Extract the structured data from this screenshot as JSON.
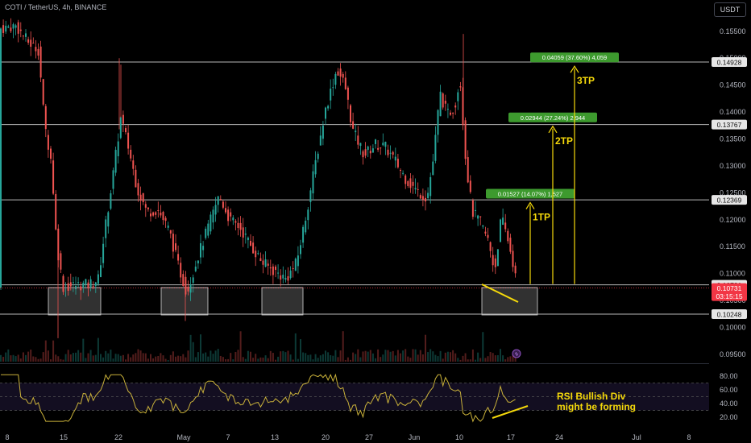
{
  "header": {
    "title": "COTI / TetherUS, 4h, BINANCE",
    "currency": "USDT"
  },
  "price_axis": {
    "ticks": [
      "0.15500",
      "0.15000",
      "0.14500",
      "0.14000",
      "0.13500",
      "0.13000",
      "0.12500",
      "0.12000",
      "0.11500",
      "0.11000",
      "0.10500",
      "0.10000",
      "0.09500"
    ],
    "tick_values": [
      0.155,
      0.15,
      0.145,
      0.14,
      0.135,
      0.13,
      0.125,
      0.12,
      0.115,
      0.11,
      0.105,
      0.1,
      0.095
    ]
  },
  "levels": [
    {
      "label": "0.14928",
      "value": 0.14928,
      "line_color": "#b8b8b8"
    },
    {
      "label": "0.13767",
      "value": 0.13767,
      "line_color": "#b8b8b8"
    },
    {
      "label": "0.12369",
      "value": 0.12369,
      "line_color": "#b8b8b8"
    },
    {
      "label": "0.10791",
      "value": 0.10791,
      "line_color": "#b8b8b8"
    },
    {
      "label": "0.10248",
      "value": 0.10248,
      "line_color": "#b8b8b8"
    }
  ],
  "current_price": {
    "label": "0.10731",
    "countdown": "03:15:15",
    "color": "#f23645",
    "value": 0.10731
  },
  "time_axis": {
    "labels": [
      "8",
      "15",
      "22",
      "May",
      "7",
      "13",
      "20",
      "27",
      "Jun",
      "10",
      "17",
      "24",
      "Jul",
      "8"
    ]
  },
  "targets": [
    {
      "name": "1TP",
      "measure": "0.01527 (14.07%) 1,527",
      "height": 0.01527
    },
    {
      "name": "2TP",
      "measure": "0.02944 (27.24%) 2,944",
      "height": 0.02944
    },
    {
      "name": "3TP",
      "measure": "0.04059 (37.60%) 4,059",
      "height": 0.04059
    }
  ],
  "rsi": {
    "ticks": [
      "80.00",
      "60.00",
      "40.00",
      "20.00"
    ],
    "tick_values": [
      80,
      60,
      40,
      20
    ],
    "annotation_line1": "RSI Bullish Div",
    "annotation_line2": "might be forming"
  },
  "colors": {
    "up": "#26a69a",
    "down": "#ef5350",
    "accent": "#f5d90a",
    "rsi": "#c9b13a",
    "tp_bg": "#3d9a2e"
  }
}
